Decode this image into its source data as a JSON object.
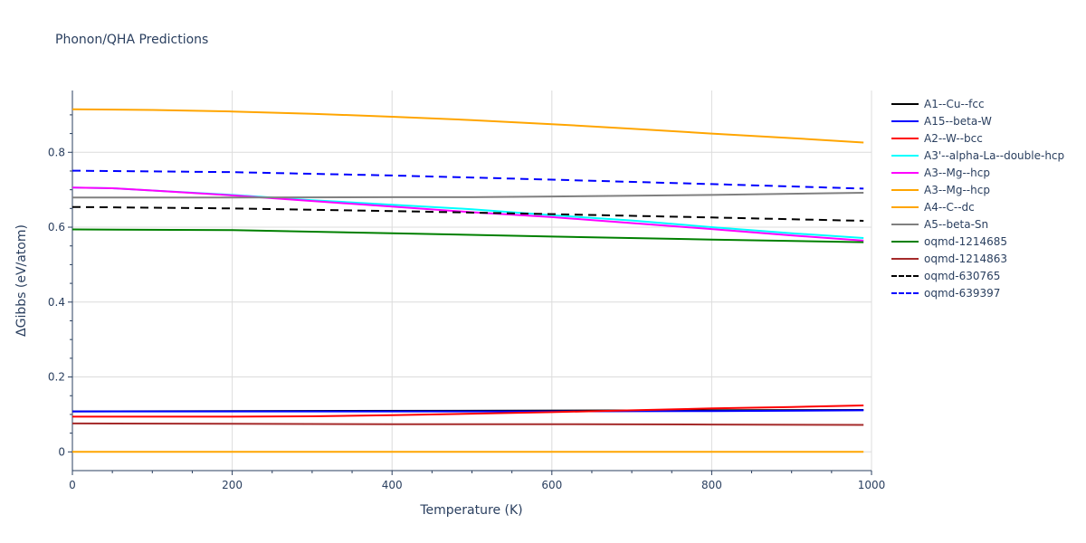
{
  "chart_data": {
    "type": "line",
    "title": "Phonon/QHA Predictions",
    "xlabel": "Temperature (K)",
    "ylabel": "ΔGibbs (eV/atom)",
    "xlim": [
      0,
      1000
    ],
    "ylim": [
      -0.05,
      0.965
    ],
    "xticks": [
      0,
      200,
      400,
      600,
      800,
      1000
    ],
    "yticks": [
      0,
      0.2,
      0.4,
      0.6,
      0.8
    ],
    "xtick_labels": [
      "0",
      "200",
      "400",
      "600",
      "800",
      "1000"
    ],
    "ytick_labels": [
      "0",
      "0.2",
      "0.4",
      "0.6",
      "0.8"
    ],
    "grid": true,
    "legend_position": "right",
    "series": [
      {
        "name": "A1--Cu--fcc",
        "color": "#000000",
        "dash": "solid",
        "x": [
          0,
          990
        ],
        "y": [
          0.108,
          0.112
        ]
      },
      {
        "name": "A15--beta-W",
        "color": "#0000ff",
        "dash": "solid",
        "x": [
          0,
          200,
          400,
          600,
          800,
          990
        ],
        "y": [
          0.108,
          0.108,
          0.108,
          0.108,
          0.109,
          0.111
        ]
      },
      {
        "name": "A2--W--bcc",
        "color": "#ff0000",
        "dash": "solid",
        "x": [
          0,
          200,
          300,
          400,
          500,
          600,
          700,
          800,
          900,
          990
        ],
        "y": [
          0.094,
          0.094,
          0.095,
          0.098,
          0.102,
          0.106,
          0.111,
          0.116,
          0.12,
          0.124
        ]
      },
      {
        "name": "A3'--alpha-La--double-hcp",
        "color": "#00ffff",
        "dash": "solid",
        "x": [
          0,
          50,
          100,
          200,
          300,
          400,
          500,
          600,
          700,
          800,
          900,
          990
        ],
        "y": [
          0.706,
          0.704,
          0.698,
          0.686,
          0.672,
          0.66,
          0.648,
          0.632,
          0.618,
          0.6,
          0.584,
          0.571
        ]
      },
      {
        "name": "A3--Mg--hcp",
        "color": "#ff00ff",
        "dash": "solid",
        "x": [
          0,
          50,
          100,
          200,
          300,
          400,
          500,
          600,
          700,
          800,
          900,
          990
        ],
        "y": [
          0.706,
          0.704,
          0.698,
          0.685,
          0.67,
          0.655,
          0.64,
          0.627,
          0.611,
          0.595,
          0.578,
          0.564
        ]
      },
      {
        "name": "A3--Mg--hcp",
        "color": "#ffa500",
        "dash": "solid",
        "x": [
          0,
          990
        ],
        "y": [
          0,
          0
        ]
      },
      {
        "name": "A4--C--dc",
        "color": "#ffa500",
        "dash": "solid",
        "x": [
          0,
          100,
          200,
          300,
          400,
          500,
          600,
          700,
          800,
          900,
          990
        ],
        "y": [
          0.915,
          0.913,
          0.909,
          0.903,
          0.895,
          0.886,
          0.875,
          0.863,
          0.85,
          0.838,
          0.826
        ]
      },
      {
        "name": "A5--beta-Sn",
        "color": "#808080",
        "dash": "solid",
        "x": [
          0,
          200,
          400,
          500,
          600,
          800,
          990
        ],
        "y": [
          0.679,
          0.679,
          0.68,
          0.68,
          0.682,
          0.686,
          0.692
        ]
      },
      {
        "name": "oqmd-1214685",
        "color": "#008000",
        "dash": "solid",
        "x": [
          0,
          200,
          400,
          600,
          800,
          990
        ],
        "y": [
          0.594,
          0.592,
          0.584,
          0.575,
          0.567,
          0.56
        ]
      },
      {
        "name": "oqmd-1214863",
        "color": "#a52a2a",
        "dash": "solid",
        "x": [
          0,
          200,
          400,
          600,
          800,
          990
        ],
        "y": [
          0.076,
          0.075,
          0.074,
          0.074,
          0.073,
          0.072
        ]
      },
      {
        "name": "oqmd-630765",
        "color": "#000000",
        "dash": "dash",
        "x": [
          0,
          200,
          400,
          600,
          800,
          990
        ],
        "y": [
          0.654,
          0.65,
          0.643,
          0.635,
          0.626,
          0.617
        ]
      },
      {
        "name": "oqmd-639397",
        "color": "#0000ff",
        "dash": "dash",
        "x": [
          0,
          200,
          400,
          600,
          800,
          990
        ],
        "y": [
          0.751,
          0.747,
          0.738,
          0.727,
          0.715,
          0.703
        ]
      }
    ]
  }
}
